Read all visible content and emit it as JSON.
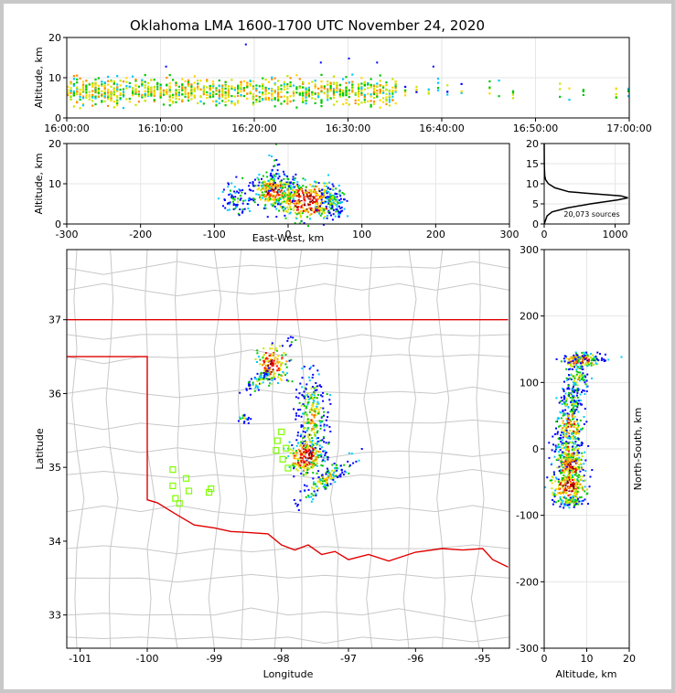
{
  "chart_data": {
    "type": "scatter",
    "title": "Oklahoma LMA 1600-1700 UTC November 24, 2020",
    "colors": {
      "density_scale": [
        "#0000ff",
        "#00c8ff",
        "#00c800",
        "#c8e600",
        "#ffd700",
        "#ff8c00",
        "#ff0000",
        "#800000",
        "#ffffff"
      ],
      "state_border": "#e00000",
      "county_lines": "#c8c8c8",
      "stations": "#7fff00"
    },
    "panels": [
      {
        "id": "time-altitude",
        "ylabel": "Altitude, km",
        "xlabel": "",
        "xlim": [
          0,
          60
        ],
        "ylim": [
          0,
          20
        ],
        "xticks": [
          {
            "v": 0,
            "label": "16:00:00"
          },
          {
            "v": 10,
            "label": "16:10:00"
          },
          {
            "v": 20,
            "label": "16:20:00"
          },
          {
            "v": 30,
            "label": "16:30:00"
          },
          {
            "v": 40,
            "label": "16:40:00"
          },
          {
            "v": 50,
            "label": "16:50:00"
          },
          {
            "v": 60,
            "label": "17:00:00"
          }
        ],
        "yticks": [
          0,
          10,
          20
        ]
      },
      {
        "id": "ew-altitude",
        "ylabel": "Altitude, km",
        "xlabel": "East-West, km",
        "xlim": [
          -300,
          300
        ],
        "ylim": [
          0,
          20
        ],
        "xticks": [
          -300,
          -200,
          -100,
          0,
          100,
          200,
          300
        ],
        "yticks": [
          0,
          10,
          20
        ]
      },
      {
        "id": "altitude-histogram",
        "xlim": [
          0,
          1200
        ],
        "ylim": [
          0,
          20
        ],
        "xticks": [
          0,
          1000
        ],
        "yticks": [
          0,
          5,
          10,
          15,
          20
        ],
        "annotation": "20,073 sources",
        "profile": [
          [
            0,
            0
          ],
          [
            2,
            40
          ],
          [
            3,
            110
          ],
          [
            4,
            330
          ],
          [
            5,
            650
          ],
          [
            6,
            1040
          ],
          [
            6.5,
            1180
          ],
          [
            7,
            1080
          ],
          [
            7.5,
            700
          ],
          [
            8,
            350
          ],
          [
            9,
            150
          ],
          [
            10,
            60
          ],
          [
            11,
            20
          ],
          [
            12,
            8
          ],
          [
            14,
            3
          ],
          [
            16,
            1
          ],
          [
            20,
            0
          ]
        ]
      },
      {
        "id": "map",
        "xlabel": "Longitude",
        "ylabel": "Latitude",
        "xlim": [
          -101.2,
          -94.6
        ],
        "ylim": [
          32.55,
          37.95
        ],
        "xticks": [
          -101,
          -100,
          -99,
          -98,
          -97,
          -96,
          -95
        ],
        "yticks": [
          33,
          34,
          35,
          36,
          37
        ],
        "stations": [
          [
            -99.62,
            34.97
          ],
          [
            -99.42,
            34.85
          ],
          [
            -99.62,
            34.75
          ],
          [
            -99.38,
            34.68
          ],
          [
            -99.58,
            34.58
          ],
          [
            -99.52,
            34.51
          ],
          [
            -99.05,
            34.71
          ],
          [
            -99.08,
            34.66
          ],
          [
            -98.0,
            35.48
          ],
          [
            -98.06,
            35.36
          ],
          [
            -98.08,
            35.23
          ],
          [
            -97.93,
            35.26
          ],
          [
            -97.98,
            35.11
          ],
          [
            -97.9,
            34.99
          ]
        ]
      },
      {
        "id": "altitude-ns",
        "xlabel": "Altitude, km",
        "ylabel": "North-South, km",
        "xlim": [
          0,
          20
        ],
        "ylim": [
          -300,
          300
        ],
        "xticks": [
          0,
          10,
          20
        ],
        "yticks": [
          -300,
          -200,
          -100,
          0,
          100,
          200,
          300
        ]
      }
    ]
  }
}
